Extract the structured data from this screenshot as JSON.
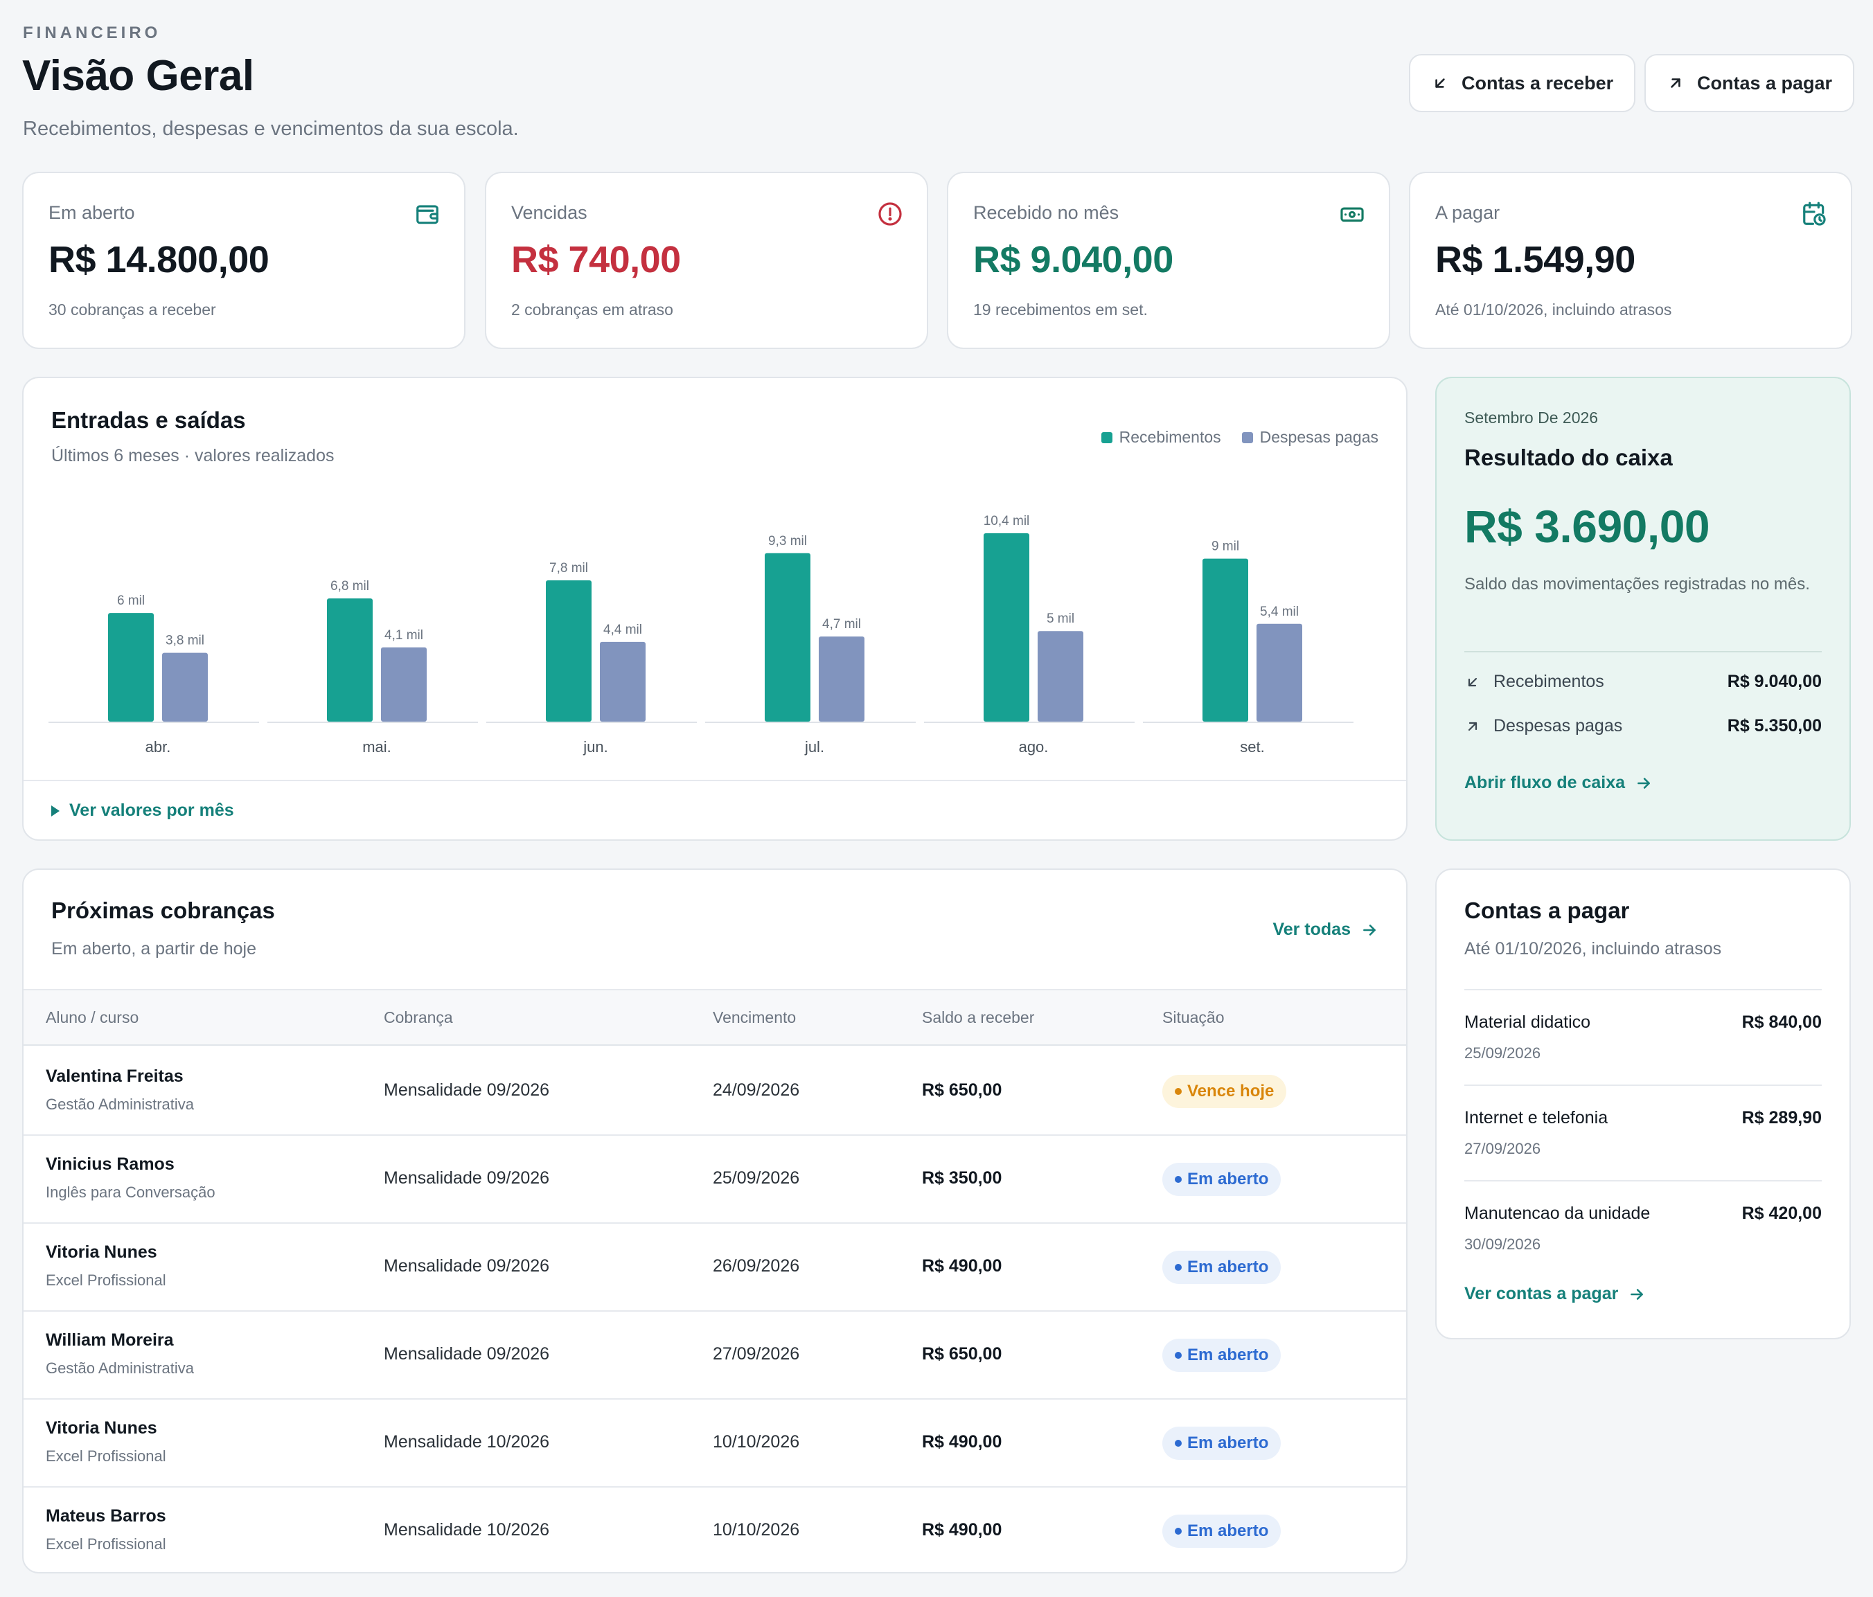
{
  "header": {
    "eyebrow": "FINANCEIRO",
    "title": "Visão Geral",
    "subtitle": "Recebimentos, despesas e vencimentos da sua escola.",
    "btn_receivable": "Contas a receber",
    "btn_payable": "Contas a pagar"
  },
  "kpis": [
    {
      "label": "Em aberto",
      "value": "R$ 14.800,00",
      "note": "30 cobranças a receber",
      "color": "#111820",
      "icon": "wallet-icon"
    },
    {
      "label": "Vencidas",
      "value": "R$ 740,00",
      "note": "2 cobranças em atraso",
      "color": "#c4303f",
      "icon": "alert-circle-icon"
    },
    {
      "label": "Recebido no mês",
      "value": "R$ 9.040,00",
      "note": "19 recebimentos em set.",
      "color": "#137a63",
      "icon": "banknote-icon"
    },
    {
      "label": "A pagar",
      "value": "R$ 1.549,90",
      "note": "Até 01/10/2026, incluindo atrasos",
      "color": "#111820",
      "icon": "calendar-clock-icon"
    }
  ],
  "chart_card": {
    "title": "Entradas e saídas",
    "subtitle": "Últimos 6 meses · valores realizados",
    "toggle": "Ver valores por mês"
  },
  "chart_data": {
    "type": "bar",
    "categories": [
      "abr.",
      "mai.",
      "jun.",
      "jul.",
      "ago.",
      "set."
    ],
    "series": [
      {
        "name": "Recebimentos",
        "values": [
          6,
          6.8,
          7.8,
          9.3,
          10.4,
          9
        ],
        "labels": [
          "6 mil",
          "6,8 mil",
          "7,8 mil",
          "9,3 mil",
          "10,4 mil",
          "9 mil"
        ],
        "color": "#17a192"
      },
      {
        "name": "Despesas pagas",
        "values": [
          3.8,
          4.1,
          4.4,
          4.7,
          5,
          5.4
        ],
        "labels": [
          "3,8 mil",
          "4,1 mil",
          "4,4 mil",
          "4,7 mil",
          "5 mil",
          "5,4 mil"
        ],
        "color": "#8194be"
      }
    ],
    "ylim": [
      0,
      10.4
    ],
    "legend": "top-right",
    "grid": false
  },
  "result": {
    "period": "Setembro De 2026",
    "title": "Resultado do caixa",
    "value": "R$ 3.690,00",
    "desc": "Saldo das movimentações registradas no mês.",
    "rows": [
      {
        "label": "Recebimentos",
        "amount": "R$ 9.040,00",
        "icon": "arrow-down-left-icon"
      },
      {
        "label": "Despesas pagas",
        "amount": "R$ 5.350,00",
        "icon": "arrow-up-right-icon"
      }
    ],
    "link": "Abrir fluxo de caixa"
  },
  "charges": {
    "title": "Próximas cobranças",
    "subtitle": "Em aberto, a partir de hoje",
    "link": "Ver todas",
    "columns": [
      "Aluno / curso",
      "Cobrança",
      "Vencimento",
      "Saldo a receber",
      "Situação"
    ],
    "rows": [
      {
        "name": "Valentina Freitas",
        "course": "Gestão Administrativa",
        "charge": "Mensalidade 09/2026",
        "due": "24/09/2026",
        "amount": "R$ 650,00",
        "status": "Vence hoje",
        "kind": "warn"
      },
      {
        "name": "Vinicius Ramos",
        "course": "Inglês para Conversação",
        "charge": "Mensalidade 09/2026",
        "due": "25/09/2026",
        "amount": "R$ 350,00",
        "status": "Em aberto",
        "kind": "open"
      },
      {
        "name": "Vitoria Nunes",
        "course": "Excel Profissional",
        "charge": "Mensalidade 09/2026",
        "due": "26/09/2026",
        "amount": "R$ 490,00",
        "status": "Em aberto",
        "kind": "open"
      },
      {
        "name": "William Moreira",
        "course": "Gestão Administrativa",
        "charge": "Mensalidade 09/2026",
        "due": "27/09/2026",
        "amount": "R$ 650,00",
        "status": "Em aberto",
        "kind": "open"
      },
      {
        "name": "Vitoria Nunes",
        "course": "Excel Profissional",
        "charge": "Mensalidade 10/2026",
        "due": "10/10/2026",
        "amount": "R$ 490,00",
        "status": "Em aberto",
        "kind": "open"
      },
      {
        "name": "Mateus Barros",
        "course": "Excel Profissional",
        "charge": "Mensalidade 10/2026",
        "due": "10/10/2026",
        "amount": "R$ 490,00",
        "status": "Em aberto",
        "kind": "open"
      }
    ]
  },
  "payables": {
    "title": "Contas a pagar",
    "subtitle": "Até 01/10/2026, incluindo atrasos",
    "items": [
      {
        "name": "Material didatico",
        "date": "25/09/2026",
        "amount": "R$ 840,00"
      },
      {
        "name": "Internet e telefonia",
        "date": "27/09/2026",
        "amount": "R$ 289,90"
      },
      {
        "name": "Manutencao da unidade",
        "date": "30/09/2026",
        "amount": "R$ 420,00"
      }
    ],
    "link": "Ver contas a pagar"
  }
}
